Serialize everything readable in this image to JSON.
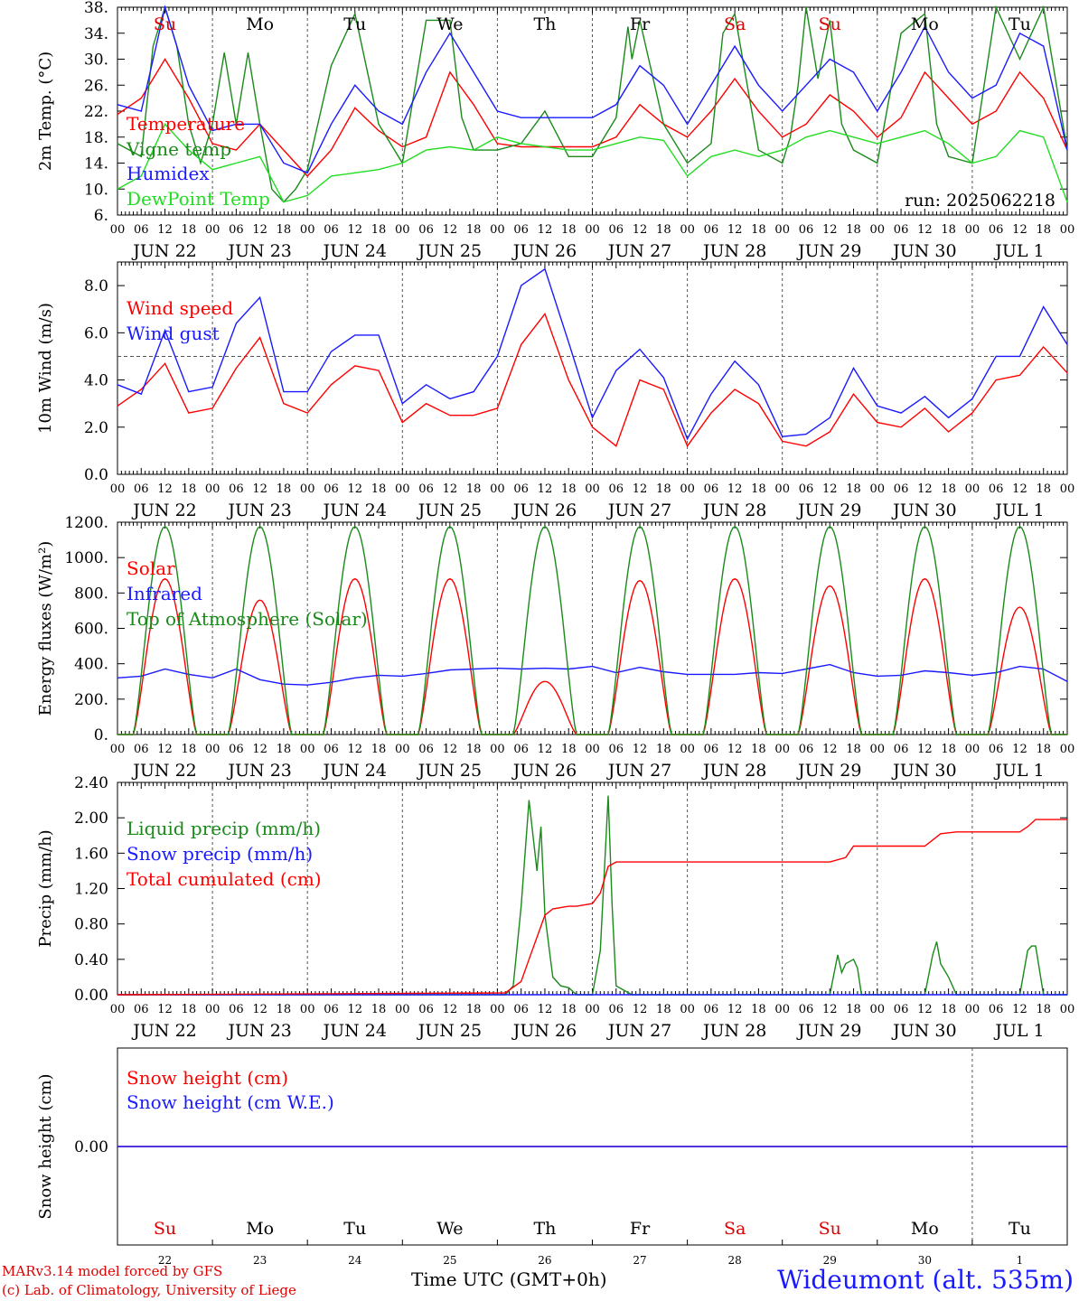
{
  "run_label": "run: 2025062218",
  "credits": {
    "line1": "MARv3.14 model forced by GFS",
    "line2": "(c) Lab. of Climatology, University of Liege"
  },
  "x_axis_title": "Time UTC (GMT+0h)",
  "station": "Wideumont (alt. 535m)",
  "hour_ticks": [
    "00",
    "06",
    "12",
    "18"
  ],
  "day_labels": [
    "JUN 22",
    "JUN 23",
    "JUN 24",
    "JUN 25",
    "JUN 26",
    "JUN 27",
    "JUN 28",
    "JUN 29",
    "JUN 30",
    "JUL  1"
  ],
  "weekdays": [
    {
      "label": "Su",
      "color": "#e00000"
    },
    {
      "label": "Mo",
      "color": "#000000"
    },
    {
      "label": "Tu",
      "color": "#000000"
    },
    {
      "label": "We",
      "color": "#000000"
    },
    {
      "label": "Th",
      "color": "#000000"
    },
    {
      "label": "Fr",
      "color": "#000000"
    },
    {
      "label": "Sa",
      "color": "#e00000"
    },
    {
      "label": "Su",
      "color": "#e00000"
    },
    {
      "label": "Mo",
      "color": "#000000"
    },
    {
      "label": "Tu",
      "color": "#000000"
    }
  ],
  "day_numbers": [
    "22",
    "23",
    "24",
    "25",
    "26",
    "27",
    "28",
    "29",
    "30",
    "1"
  ],
  "colors": {
    "red": "#ff0000",
    "green": "#1a8a1a",
    "blue": "#1a1aff",
    "lightgreen": "#22dd22",
    "grid": "#444444"
  },
  "chart_data": [
    {
      "type": "line",
      "ylabel": "2m Temp. (°C)",
      "ylim": [
        6,
        38
      ],
      "yticks": [
        "6.",
        "10.",
        "14.",
        "18.",
        "22.",
        "26.",
        "30.",
        "34.",
        "38."
      ],
      "x_unit": "hours since 2025-06-22 00 UTC",
      "series": [
        {
          "name": "Temperature",
          "color": "red",
          "x": [
            0,
            6,
            12,
            18,
            24,
            30,
            36,
            42,
            48,
            54,
            60,
            66,
            72,
            78,
            84,
            90,
            96,
            102,
            108,
            114,
            120,
            126,
            132,
            138,
            144,
            150,
            156,
            162,
            168,
            174,
            180,
            186,
            192,
            198,
            204,
            210,
            216,
            222,
            228,
            234,
            240
          ],
          "y": [
            21.5,
            24,
            30,
            24,
            17,
            16,
            20,
            16,
            12,
            16,
            22.5,
            19,
            16.5,
            18,
            28,
            23,
            17,
            16.5,
            16.5,
            16.5,
            16.5,
            18,
            23,
            20,
            18,
            22,
            27,
            22,
            18,
            20,
            24.5,
            22,
            18,
            21,
            28,
            24,
            20,
            22,
            28,
            24,
            16
          ]
        },
        {
          "name": "Vigne temp",
          "color": "green",
          "x": [
            0,
            6,
            9,
            12,
            15,
            18,
            21,
            24,
            27,
            30,
            33,
            36,
            39,
            42,
            45,
            48,
            54,
            60,
            66,
            72,
            78,
            84,
            87,
            90,
            96,
            102,
            108,
            114,
            120,
            126,
            129,
            130,
            132,
            138,
            144,
            150,
            153,
            156,
            162,
            168,
            170,
            172,
            174,
            177,
            180,
            183,
            186,
            192,
            198,
            204,
            207,
            210,
            216,
            222,
            228,
            234,
            240
          ],
          "y": [
            17,
            15,
            32,
            38,
            32,
            20,
            14,
            20,
            31,
            20,
            31,
            20,
            10,
            8,
            10,
            13,
            29,
            37,
            20,
            14,
            36,
            36,
            21,
            16,
            16,
            17,
            22,
            15,
            15,
            21,
            35,
            30,
            36,
            20,
            14,
            17,
            34,
            37,
            16,
            14,
            18,
            26,
            38,
            27,
            36,
            20,
            16,
            14,
            34,
            37,
            20,
            15,
            14,
            38,
            30,
            38,
            16
          ]
        },
        {
          "name": "Humidex",
          "color": "blue",
          "x": [
            0,
            6,
            12,
            18,
            24,
            30,
            36,
            42,
            48,
            54,
            60,
            66,
            72,
            78,
            84,
            90,
            96,
            102,
            108,
            114,
            120,
            126,
            132,
            138,
            144,
            150,
            156,
            162,
            168,
            174,
            180,
            186,
            192,
            198,
            204,
            210,
            216,
            222,
            228,
            234,
            240
          ],
          "y": [
            23,
            22,
            38,
            26,
            19,
            20,
            20,
            14,
            12.5,
            20,
            26,
            22,
            20,
            28,
            34,
            28,
            22,
            21,
            21,
            21,
            21,
            23,
            29,
            26,
            20,
            26,
            32,
            26,
            22,
            26,
            30,
            28,
            22,
            28,
            35,
            28,
            24,
            26,
            34,
            32,
            16
          ]
        },
        {
          "name": "DewPoint Temp",
          "color": "lightgreen",
          "x": [
            0,
            6,
            12,
            18,
            24,
            30,
            36,
            42,
            48,
            54,
            60,
            66,
            72,
            78,
            84,
            90,
            96,
            102,
            108,
            114,
            120,
            126,
            132,
            138,
            144,
            150,
            156,
            162,
            168,
            174,
            180,
            186,
            192,
            198,
            204,
            210,
            216,
            222,
            228,
            234,
            240
          ],
          "y": [
            10,
            12,
            20,
            16,
            13,
            14,
            15,
            8,
            9,
            12,
            12.5,
            13,
            14,
            16,
            16.5,
            16,
            18,
            17,
            16.5,
            16,
            16,
            17,
            18,
            17.5,
            12,
            15,
            16,
            15,
            16,
            18,
            19,
            18,
            17,
            18,
            19,
            17,
            14,
            15,
            19,
            18,
            8
          ]
        }
      ]
    },
    {
      "type": "line",
      "ylabel": "10m Wind (m/s)",
      "ylim": [
        0,
        9
      ],
      "yticks": [
        "0.0",
        "2.0",
        "4.0",
        "6.0",
        "8.0"
      ],
      "reference_line": 5,
      "x_unit": "hours since 2025-06-22 00 UTC",
      "series": [
        {
          "name": "Wind speed",
          "color": "red",
          "x": [
            0,
            6,
            12,
            18,
            24,
            30,
            36,
            42,
            48,
            54,
            60,
            66,
            72,
            78,
            84,
            90,
            96,
            102,
            108,
            114,
            120,
            126,
            132,
            138,
            144,
            150,
            156,
            162,
            168,
            174,
            180,
            186,
            192,
            198,
            204,
            210,
            216,
            222,
            228,
            234,
            240
          ],
          "y": [
            2.9,
            3.6,
            4.7,
            2.6,
            2.8,
            4.5,
            5.8,
            3,
            2.6,
            3.8,
            4.6,
            4.4,
            2.2,
            3,
            2.5,
            2.5,
            2.8,
            5.5,
            6.8,
            4,
            2,
            1.2,
            4,
            3.6,
            1.2,
            2.6,
            3.6,
            3,
            1.4,
            1.2,
            1.8,
            3.4,
            2.2,
            2,
            2.8,
            1.8,
            2.6,
            4,
            4.2,
            5.4,
            4.3
          ]
        },
        {
          "name": "Wind gust",
          "color": "blue",
          "x": [
            0,
            6,
            12,
            18,
            24,
            30,
            36,
            42,
            48,
            54,
            60,
            66,
            72,
            78,
            84,
            90,
            96,
            102,
            108,
            114,
            120,
            126,
            132,
            138,
            144,
            150,
            156,
            162,
            168,
            174,
            180,
            186,
            192,
            198,
            204,
            210,
            216,
            222,
            228,
            234,
            240
          ],
          "y": [
            3.8,
            3.4,
            6.1,
            3.5,
            3.7,
            6.4,
            7.5,
            3.5,
            3.5,
            5.2,
            5.9,
            5.9,
            3,
            3.8,
            3.2,
            3.5,
            5,
            8,
            8.7,
            5.6,
            2.4,
            4.4,
            5.3,
            4.1,
            1.5,
            3.4,
            4.8,
            3.8,
            1.6,
            1.7,
            2.4,
            4.5,
            2.9,
            2.6,
            3.3,
            2.4,
            3.2,
            5,
            5,
            7.1,
            5.5
          ]
        }
      ]
    },
    {
      "type": "line",
      "ylabel": "Energy fluxes (W/m²)",
      "ylim": [
        0,
        1200
      ],
      "yticks": [
        "0.",
        "200.",
        "400.",
        "600.",
        "800.",
        "1000.",
        "1200."
      ],
      "x_unit": "hours since 2025-06-22 00 UTC",
      "series": [
        {
          "name": "Solar",
          "color": "red",
          "peaks": [
            880,
            760,
            880,
            880,
            300,
            870,
            880,
            840,
            880,
            720
          ]
        },
        {
          "name": "Infrared",
          "color": "blue",
          "x": [
            0,
            6,
            12,
            18,
            24,
            30,
            36,
            42,
            48,
            54,
            60,
            66,
            72,
            78,
            84,
            90,
            96,
            102,
            108,
            114,
            120,
            126,
            132,
            138,
            144,
            150,
            156,
            162,
            168,
            174,
            180,
            186,
            192,
            198,
            204,
            210,
            216,
            222,
            228,
            234,
            240
          ],
          "y": [
            320,
            330,
            370,
            340,
            320,
            370,
            310,
            285,
            280,
            295,
            320,
            335,
            330,
            345,
            365,
            370,
            375,
            370,
            375,
            370,
            385,
            350,
            380,
            355,
            340,
            340,
            340,
            350,
            345,
            370,
            395,
            350,
            330,
            335,
            360,
            350,
            335,
            350,
            385,
            370,
            300
          ]
        },
        {
          "name": "Top of Atmosphere (Solar)",
          "color": "green",
          "peaks": [
            1175,
            1175,
            1175,
            1175,
            1175,
            1175,
            1175,
            1175,
            1175,
            1175
          ]
        }
      ]
    },
    {
      "type": "line",
      "ylabel": "Precip (mm/h)",
      "ylim": [
        0,
        2.4
      ],
      "yticks": [
        "0.00",
        "0.40",
        "0.80",
        "1.20",
        "1.60",
        "2.00",
        "2.40"
      ],
      "x_unit": "hours since 2025-06-22 00 UTC",
      "series": [
        {
          "name": "Liquid precip (mm/h)",
          "color": "green",
          "x": [
            0,
            98,
            100,
            102,
            104,
            106,
            107,
            108,
            110,
            112,
            114,
            116,
            118,
            120,
            122,
            124,
            125,
            126,
            128,
            130,
            132,
            180,
            182,
            183,
            184,
            186,
            187,
            188,
            190,
            204,
            206,
            207,
            208,
            210,
            212,
            228,
            230,
            231,
            232,
            234,
            240
          ],
          "y": [
            0,
            0,
            0.1,
            1.0,
            2.2,
            1.4,
            1.9,
            0.9,
            0.2,
            0.1,
            0.08,
            0,
            0,
            0,
            0.5,
            2.25,
            1.0,
            0.1,
            0.05,
            0,
            0,
            0,
            0.45,
            0.25,
            0.35,
            0.4,
            0.3,
            0,
            0,
            0,
            0.45,
            0.6,
            0.35,
            0.2,
            0,
            0,
            0.5,
            0.55,
            0.55,
            0,
            0
          ]
        },
        {
          "name": "Snow precip (mm/h)",
          "color": "blue",
          "x": [
            0,
            240
          ],
          "y": [
            0,
            0
          ]
        },
        {
          "name": "Total cumulated (cm)",
          "color": "red",
          "x": [
            0,
            98,
            102,
            104,
            106,
            108,
            110,
            114,
            116,
            120,
            122,
            124,
            126,
            128,
            130,
            180,
            184,
            186,
            190,
            204,
            208,
            212,
            228,
            230,
            232,
            240
          ],
          "y": [
            0,
            0.02,
            0.15,
            0.4,
            0.65,
            0.9,
            0.97,
            1.0,
            1.0,
            1.03,
            1.15,
            1.45,
            1.5,
            1.5,
            1.5,
            1.5,
            1.55,
            1.68,
            1.68,
            1.68,
            1.82,
            1.84,
            1.84,
            1.9,
            1.98,
            1.98
          ]
        }
      ]
    },
    {
      "type": "line",
      "ylabel": "Snow height (cm)",
      "yticks": [
        "0.00"
      ],
      "x_unit": "hours since 2025-06-22 00 UTC",
      "series": [
        {
          "name": "Snow height (cm)",
          "color": "red",
          "x": [
            0,
            240
          ],
          "y": [
            0,
            0
          ]
        },
        {
          "name": "Snow height (cm W.E.)",
          "color": "blue",
          "x": [
            0,
            240
          ],
          "y": [
            0,
            0
          ]
        }
      ]
    }
  ]
}
